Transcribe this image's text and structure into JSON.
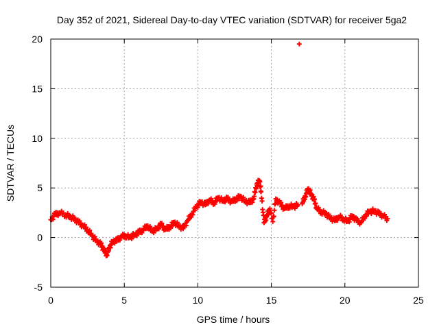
{
  "chart_data": {
    "type": "scatter",
    "title": "Day 352 of 2021, Sidereal Day-to-day VTEC variation (SDTVAR) for receiver 5ga2",
    "xlabel": "GPS time / hours",
    "ylabel": "SDTVAR / TECUs",
    "xlim": [
      0,
      25
    ],
    "ylim": [
      -5,
      20
    ],
    "xticks": [
      "0",
      "5",
      "10",
      "15",
      "20",
      "25"
    ],
    "yticks": [
      "-5",
      "0",
      "5",
      "10",
      "15",
      "20"
    ],
    "grid": true,
    "marker": "+",
    "series": [
      {
        "name": "SDTVAR",
        "color": "#ff0000",
        "points": [
          [
            0.0,
            1.8
          ],
          [
            0.3,
            2.3
          ],
          [
            0.6,
            2.5
          ],
          [
            1.0,
            2.3
          ],
          [
            1.3,
            2.1
          ],
          [
            1.6,
            1.9
          ],
          [
            1.9,
            1.5
          ],
          [
            2.2,
            1.2
          ],
          [
            2.5,
            0.8
          ],
          [
            2.8,
            0.2
          ],
          [
            3.1,
            -0.3
          ],
          [
            3.4,
            -0.7
          ],
          [
            3.6,
            -1.2
          ],
          [
            3.8,
            -1.7
          ],
          [
            4.0,
            -1.0
          ],
          [
            4.2,
            -0.4
          ],
          [
            4.5,
            -0.3
          ],
          [
            4.8,
            0.1
          ],
          [
            5.1,
            0.2
          ],
          [
            5.4,
            0.0
          ],
          [
            5.7,
            0.3
          ],
          [
            6.0,
            0.5
          ],
          [
            6.3,
            0.8
          ],
          [
            6.6,
            1.2
          ],
          [
            6.9,
            0.6
          ],
          [
            7.2,
            0.9
          ],
          [
            7.5,
            1.3
          ],
          [
            7.8,
            0.8
          ],
          [
            8.1,
            1.1
          ],
          [
            8.4,
            1.5
          ],
          [
            8.7,
            1.2
          ],
          [
            9.0,
            0.9
          ],
          [
            9.3,
            1.7
          ],
          [
            9.6,
            2.4
          ],
          [
            9.9,
            3.1
          ],
          [
            10.2,
            3.6
          ],
          [
            10.5,
            3.3
          ],
          [
            10.8,
            3.8
          ],
          [
            11.1,
            3.5
          ],
          [
            11.4,
            4.0
          ],
          [
            11.7,
            3.7
          ],
          [
            12.0,
            3.9
          ],
          [
            12.3,
            3.6
          ],
          [
            12.6,
            3.9
          ],
          [
            12.9,
            4.1
          ],
          [
            13.2,
            3.7
          ],
          [
            13.5,
            3.5
          ],
          [
            13.8,
            3.9
          ],
          [
            14.0,
            5.4
          ],
          [
            14.2,
            5.7
          ],
          [
            14.3,
            4.6
          ],
          [
            14.5,
            1.5
          ],
          [
            14.7,
            2.2
          ],
          [
            14.9,
            2.9
          ],
          [
            15.1,
            1.6
          ],
          [
            15.3,
            3.9
          ],
          [
            15.6,
            3.4
          ],
          [
            15.9,
            2.9
          ],
          [
            16.2,
            3.2
          ],
          [
            16.5,
            3.1
          ],
          [
            16.8,
            3.3
          ],
          [
            16.9,
            19.5
          ],
          [
            17.1,
            3.4
          ],
          [
            17.3,
            4.2
          ],
          [
            17.5,
            4.9
          ],
          [
            17.7,
            4.4
          ],
          [
            17.9,
            3.8
          ],
          [
            18.1,
            2.9
          ],
          [
            18.4,
            2.6
          ],
          [
            18.7,
            2.4
          ],
          [
            19.0,
            2.0
          ],
          [
            19.3,
            1.7
          ],
          [
            19.6,
            2.1
          ],
          [
            19.9,
            1.9
          ],
          [
            20.2,
            1.6
          ],
          [
            20.5,
            2.2
          ],
          [
            20.8,
            1.7
          ],
          [
            21.1,
            1.5
          ],
          [
            21.4,
            2.3
          ],
          [
            21.7,
            2.6
          ],
          [
            22.0,
            2.7
          ],
          [
            22.3,
            2.4
          ],
          [
            22.6,
            2.2
          ],
          [
            22.9,
            1.9
          ]
        ]
      }
    ]
  }
}
